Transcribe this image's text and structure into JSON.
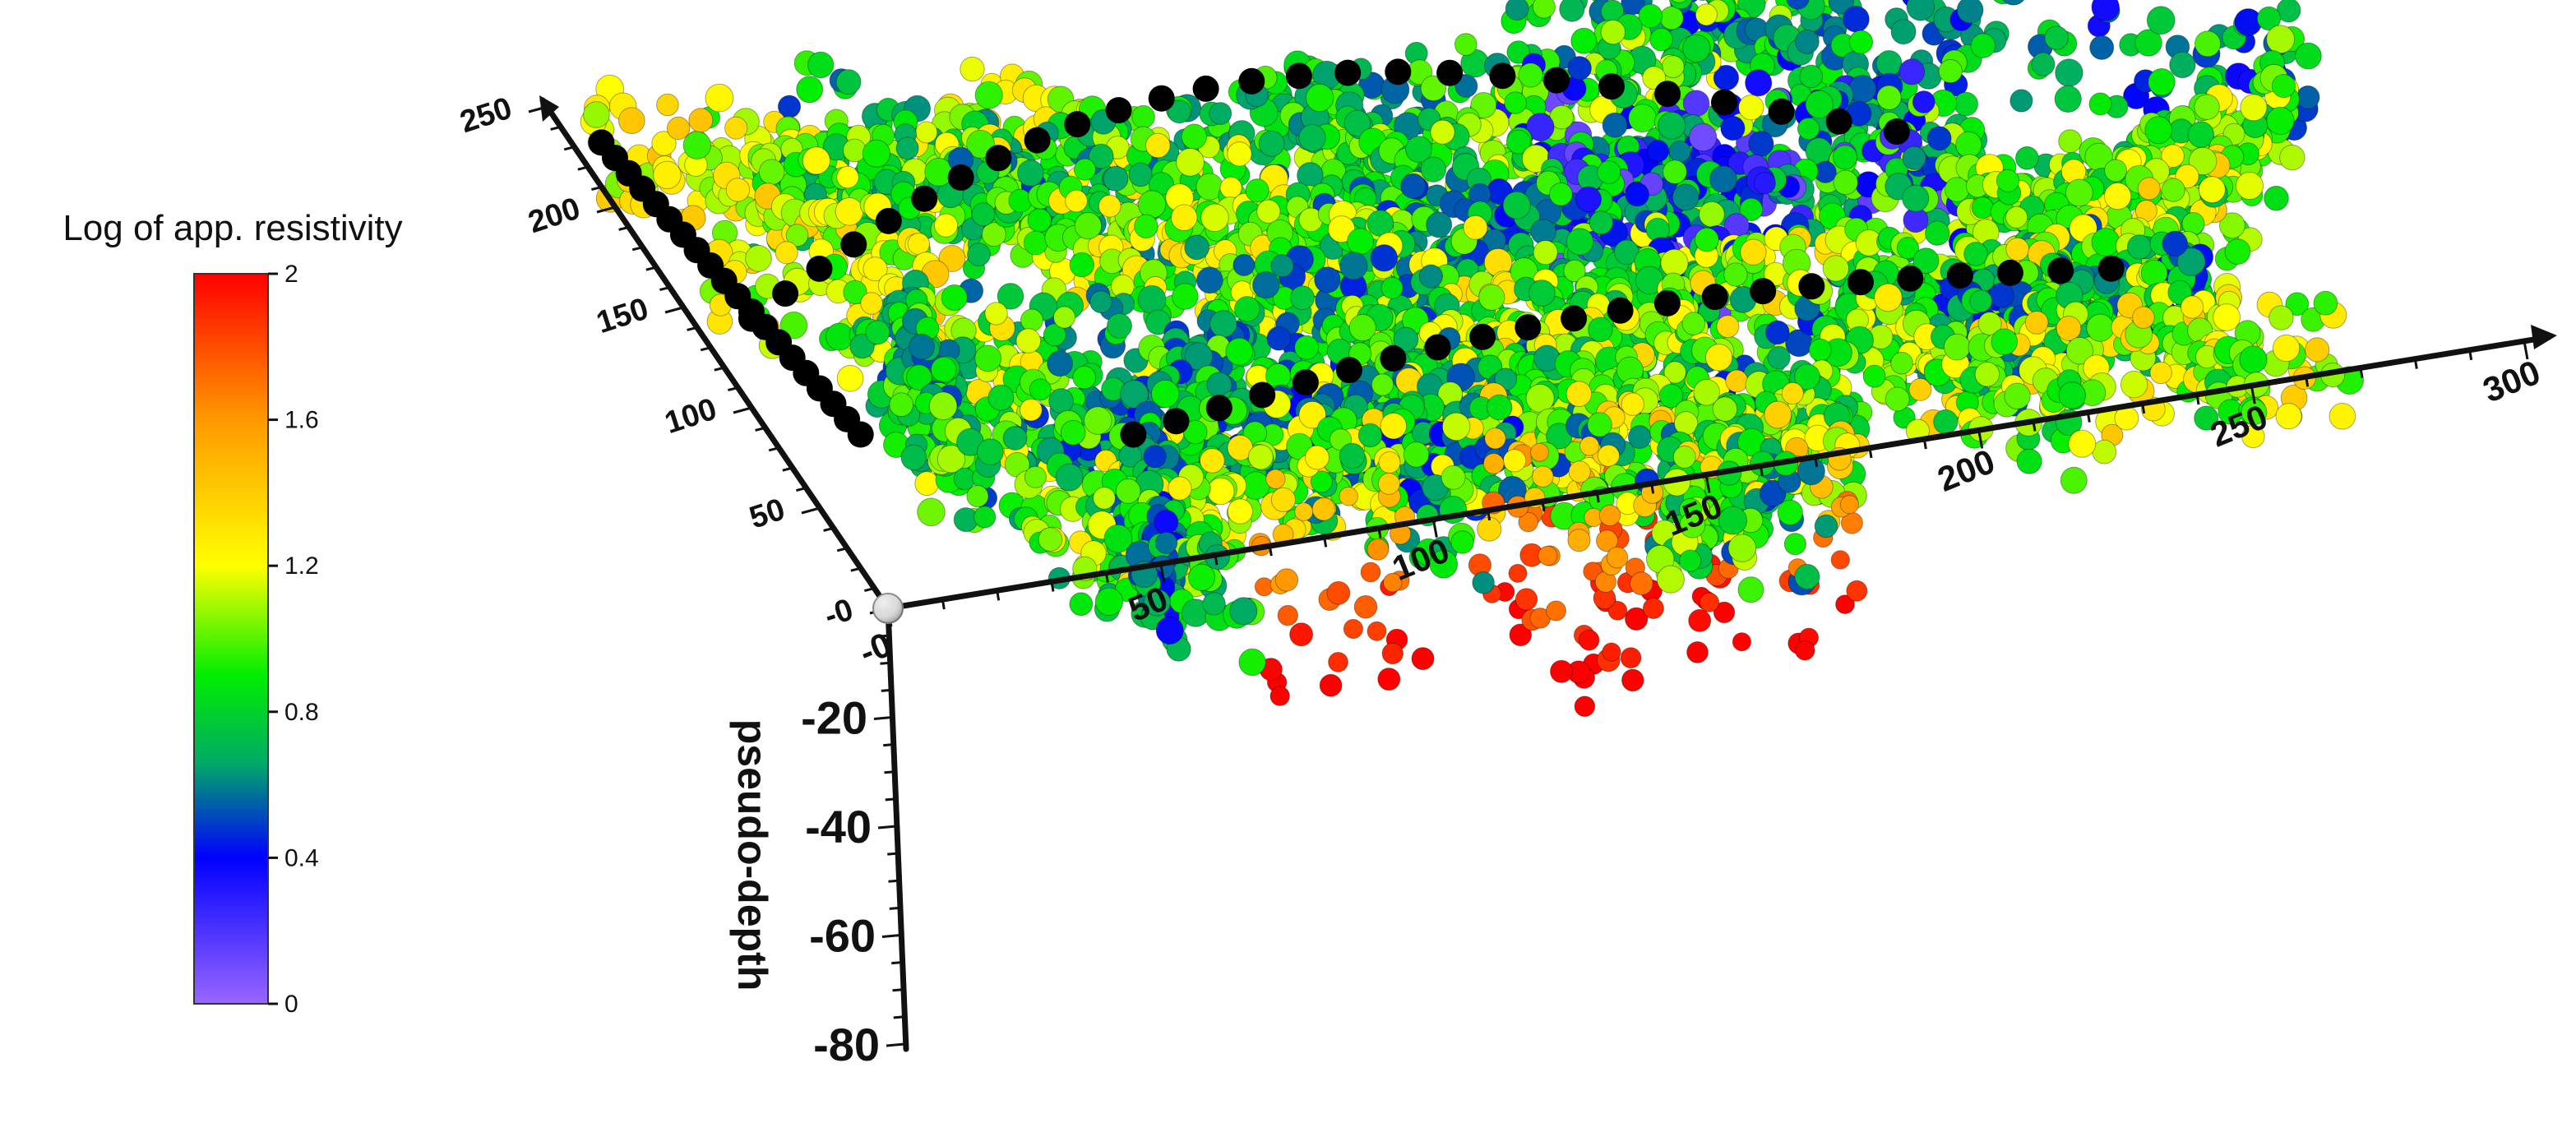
{
  "chart_data": {
    "type": "scatter",
    "title": "",
    "colorbar": {
      "title": "Log of app. resistivity",
      "range": [
        0,
        2
      ],
      "ticks": [
        "0",
        "0.4",
        "0.8",
        "1.2",
        "1.6",
        "2"
      ],
      "colors": [
        "#9966ff",
        "#0000ff",
        "#00aa66",
        "#00ee00",
        "#ffff00",
        "#ff9900",
        "#ff0000"
      ],
      "placement": "left"
    },
    "axes": {
      "x": {
        "range": [
          0,
          300
        ],
        "tick_labels": [
          "-0",
          "50",
          "100",
          "150",
          "200",
          "250",
          "300"
        ]
      },
      "y": {
        "range": [
          0,
          250
        ],
        "tick_labels": [
          "-0",
          "50",
          "100",
          "150",
          "200",
          "250"
        ]
      },
      "z": {
        "label": "pseudo-depth",
        "range": [
          -80,
          0
        ],
        "tick_labels": [
          "-20",
          "-40",
          "-60",
          "-80"
        ]
      }
    },
    "grid": false,
    "marker_colors": {
      "electrode": "#000000",
      "origin": "#dddddd"
    },
    "description_of_points": "3D pseudo-section of apparent resistivity measurements; spheres colored by log resistivity, black spheres are electrode positions along several survey lines"
  }
}
